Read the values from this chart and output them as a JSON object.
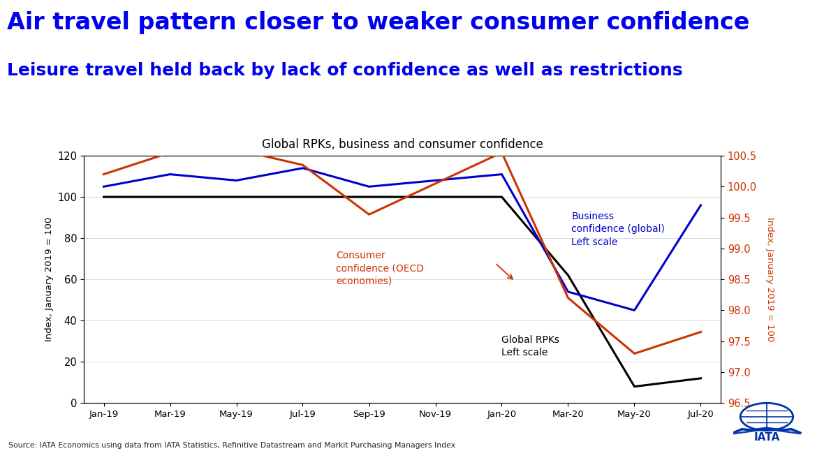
{
  "title_line1": "Air travel pattern closer to weaker consumer confidence",
  "title_line2": "Leisure travel held back by lack of confidence as well as restrictions",
  "chart_title": "Global RPKs, business and consumer confidence",
  "source": "Source: IATA Economics using data from IATA Statistics, Refinitive Datastream and Markit Purchasing Managers Index",
  "ylabel_left": "Index, January 2019 = 100",
  "ylabel_right": "Index, January 2019 = 100",
  "x_labels": [
    "Jan-19",
    "Mar-19",
    "May-19",
    "Jul-19",
    "Sep-19",
    "Nov-19",
    "Jan-20",
    "Mar-20",
    "May-20",
    "Jul-20"
  ],
  "rpk_data": [
    100,
    100,
    100,
    100,
    100,
    100,
    100,
    62,
    8,
    12
  ],
  "business_conf_data": [
    100.0,
    100.2,
    100.1,
    100.3,
    100.0,
    100.1,
    100.2,
    98.3,
    98.0,
    99.7
  ],
  "consumer_conf_data": [
    100.2,
    100.55,
    100.6,
    100.35,
    99.55,
    100.05,
    100.55,
    98.2,
    97.3,
    97.65
  ],
  "rpk_color": "#000000",
  "business_color": "#0000cc",
  "consumer_color": "#cc3300",
  "left_ylim": [
    0,
    120
  ],
  "right_ylim": [
    96.5,
    100.5
  ],
  "left_yticks": [
    0,
    20,
    40,
    60,
    80,
    100,
    120
  ],
  "right_yticks": [
    96.5,
    97.0,
    97.5,
    98.0,
    98.5,
    99.0,
    99.5,
    100.0,
    100.5
  ],
  "title_color": "#0000ee",
  "title_fontsize": 24,
  "subtitle_fontsize": 18,
  "chart_title_fontsize": 12,
  "annotation_biz": "Business\nconfidence (global)\nLeft scale",
  "annotation_consumer": "Consumer\nconfidence (OECD\neconomies)",
  "annotation_rpk": "Global RPKs\nLeft scale",
  "right_label_color": "#cc3300"
}
